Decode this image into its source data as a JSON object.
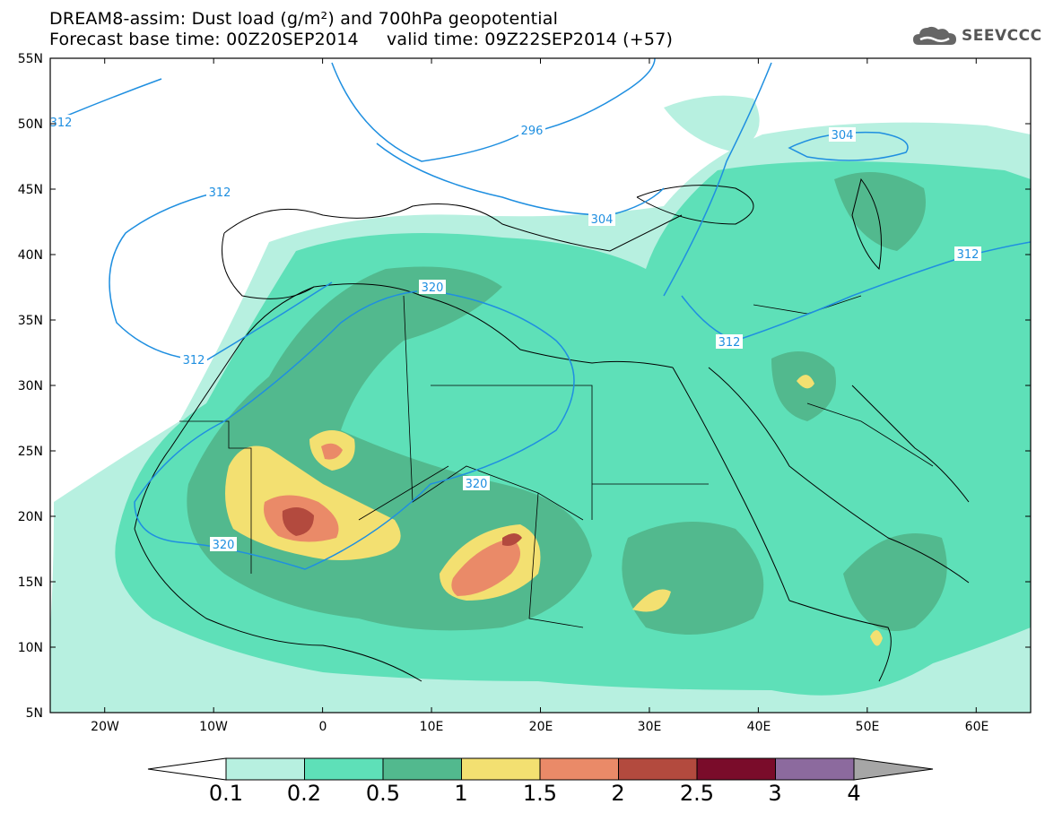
{
  "title": {
    "line1": "DREAM8-assim: Dust load (g/m²) and 700hPa geopotential",
    "line2": "Forecast base time: 00Z20SEP2014     valid time: 09Z22SEP2014 (+57)"
  },
  "logo": {
    "text": "SEEVCCC",
    "icon": "cloud-icon"
  },
  "axes": {
    "lat_labels": [
      "55N",
      "50N",
      "45N",
      "40N",
      "35N",
      "30N",
      "25N",
      "20N",
      "15N",
      "10N",
      "5N"
    ],
    "lon_labels": [
      "20W",
      "10W",
      "0",
      "10E",
      "20E",
      "30E",
      "40E",
      "50E",
      "60E"
    ],
    "lat_range": [
      5,
      55
    ],
    "lon_range": [
      -25,
      65
    ]
  },
  "contours": {
    "color": "#1f8fe0",
    "labels": [
      "312",
      "296",
      "304",
      "312",
      "320",
      "312",
      "312",
      "320",
      "320",
      "304",
      "312"
    ]
  },
  "colorbar": {
    "levels": [
      "0.1",
      "0.2",
      "0.5",
      "1",
      "1.5",
      "2",
      "2.5",
      "3",
      "4"
    ],
    "colors": [
      "#b7f0e0",
      "#5ee0b8",
      "#52b98e",
      "#f3e071",
      "#ea8a68",
      "#b34a3e",
      "#7a0c2a",
      "#8c6a9e"
    ],
    "below_color": "#ffffff",
    "above_color": "#a6a6a6"
  }
}
